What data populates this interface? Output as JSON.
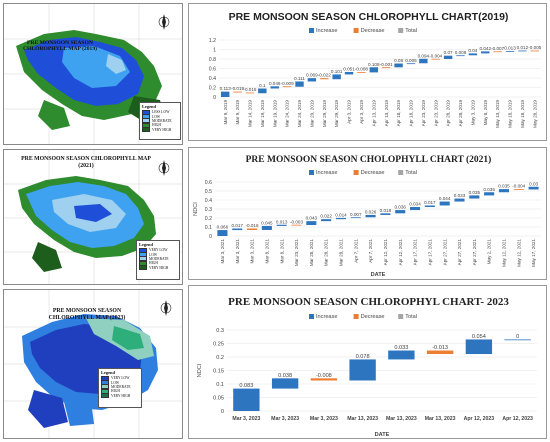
{
  "maps": [
    {
      "title": "PRE MONSOON SEASON CHLOROPHYLL MAP (2019)",
      "legend_title": "Legend",
      "legend_items": [
        {
          "label": "LESS LOW",
          "color": "#1f4fd8"
        },
        {
          "label": "LOW",
          "color": "#3fa2f0"
        },
        {
          "label": "MODERATE",
          "color": "#9fd0f0"
        },
        {
          "label": "HIGH",
          "color": "#2e8b2e"
        },
        {
          "label": "VERY HIGH",
          "color": "#1d5e1d"
        }
      ]
    },
    {
      "title": "PRE MONSOON SEASON CHLOROPHYLL MAP (2021)",
      "legend_title": "Legend",
      "legend_items": [
        {
          "label": "VERY LOW",
          "color": "#1f4fd8"
        },
        {
          "label": "LOW",
          "color": "#3fa2f0"
        },
        {
          "label": "MODERATE",
          "color": "#9fd0f0"
        },
        {
          "label": "HIGH",
          "color": "#2e8b2e"
        },
        {
          "label": "VERY HIGH",
          "color": "#1d5e1d"
        }
      ]
    },
    {
      "title": "PRE MONSOON SEASON CHLOROPHYLL MAP (2023)",
      "legend_title": "Legend",
      "legend_items": [
        {
          "label": "VERY LOW",
          "color": "#1f3fbf"
        },
        {
          "label": "LOW",
          "color": "#2f7fe0"
        },
        {
          "label": "MODERATE",
          "color": "#8fd0c0"
        },
        {
          "label": "HIGH",
          "color": "#2eae7a"
        },
        {
          "label": "VERY HIGH",
          "color": "#1d6e4d"
        }
      ]
    }
  ],
  "chart_data": [
    {
      "type": "waterfall",
      "title": "PRE MONSOON SEASON CHLOROPHYLL CHART(2019)",
      "legend": [
        "Increase",
        "Decrease",
        "Total"
      ],
      "colors": {
        "increase": "#2e75c0",
        "decrease": "#ed7d31",
        "total": "#a5a5a5"
      },
      "ylabel": "",
      "xlabel": "",
      "ylim": [
        0,
        1.2
      ],
      "yticks": [
        "0",
        "0.2",
        "0.4",
        "0.6",
        "0.8",
        "1",
        "1.2"
      ],
      "categories": [
        "Mar 9, 2019",
        "Mar 9, 2019",
        "Mar 14, 2019",
        "Mar 19, 2019",
        "Mar 19, 2019",
        "Mar 24, 2019",
        "Mar 24, 2019",
        "Mar 29, 2019",
        "Mar 29, 2019",
        "Mar 29, 2019",
        "Apr 3, 2019",
        "Apr 3, 2019",
        "Apr 13, 2019",
        "Apr 13, 2019",
        "Apr 18, 2019",
        "Apr 18, 2019",
        "Apr 23, 2019",
        "Apr 23, 2019",
        "Apr 28, 2019",
        "Apr 28, 2019",
        "May 3, 2019",
        "May 8, 2019",
        "May 13, 2019",
        "May 18, 2019",
        "May 18, 2019",
        "May 28, 2019"
      ],
      "values": [
        0.113,
        -0.019,
        -0.015,
        0.1,
        0.046,
        -0.009,
        0.111,
        0.069,
        -0.022,
        0.101,
        0.051,
        -0.008,
        0.108,
        -0.001,
        0.08,
        0.005,
        0.094,
        -0.004,
        0.07,
        0.008,
        0.04,
        0.042,
        -0.007,
        0.013,
        0.012,
        -0.005
      ],
      "labels": [
        "0.113",
        "-0.019",
        "-0.015",
        "0.1",
        "0.046",
        "-0.009",
        "0.111",
        "0.069",
        "-0.022",
        "0.101",
        "0.051",
        "-0.008",
        "0.108",
        "-0.001",
        "0.08",
        "0.005",
        "0.094",
        "-0.004",
        "0.07",
        "0.008",
        "0.04",
        "0.042",
        "-0.007",
        "0.013",
        "0.012",
        "-0.005"
      ]
    },
    {
      "type": "waterfall",
      "title": "PRE MONSOON SEASON CHOLOPHYLL CHART (2021)",
      "legend": [
        "Increase",
        "Decrease",
        "Total"
      ],
      "colors": {
        "increase": "#2e75c0",
        "decrease": "#ed7d31",
        "total": "#a5a5a5"
      },
      "ylabel": "NDCI",
      "xlabel": "DATE",
      "ylim": [
        0,
        0.6
      ],
      "yticks": [
        "0",
        "0.1",
        "0.2",
        "0.3",
        "0.4",
        "0.5",
        "0.6"
      ],
      "categories": [
        "Mar 3, 2021",
        "Mar 3, 2021",
        "Mar 3, 2021",
        "Mar 8, 2021",
        "Mar 8, 2021",
        "Mar 23, 2021",
        "Mar 28, 2021",
        "Mar 28, 2021",
        "Mar 28, 2021",
        "Apr 7, 2021",
        "Apr 7, 2021",
        "Apr 12, 2021",
        "Apr 12, 2021",
        "Apr 17, 2021",
        "Apr 17, 2021",
        "Apr 27, 2021",
        "Apr 27, 2021",
        "Apr 27, 2021",
        "May 2, 2021",
        "May 12, 2021",
        "May 12, 2021",
        "May 17, 2021"
      ],
      "values": [
        0.066,
        0.017,
        -0.016,
        0.045,
        0.013,
        -0.003,
        0.043,
        0.022,
        0.014,
        0.007,
        0.026,
        0.018,
        0.036,
        0.034,
        0.017,
        0.044,
        0.033,
        0.035,
        0.035,
        0.035,
        -0.004,
        0.03
      ],
      "labels": [
        "0.066",
        "0.017",
        "-0.016",
        "0.045",
        "0.013",
        "-0.003",
        "0.043",
        "0.022",
        "0.014",
        "0.007",
        "0.026",
        "0.018",
        "0.036",
        "0.034",
        "0.017",
        "0.044",
        "0.033",
        "0.035",
        "0.035",
        "0.035",
        "-0.004",
        "0.03"
      ]
    },
    {
      "type": "waterfall",
      "title": "PRE MONSOON SEASON CHLOROPHYL CHART- 2023",
      "legend": [
        "Increase",
        "Decrease",
        "Total"
      ],
      "colors": {
        "increase": "#2e75c0",
        "decrease": "#ed7d31",
        "total": "#a5a5a5"
      },
      "ylabel": "NDCI",
      "xlabel": "DATE",
      "ylim": [
        0,
        0.3
      ],
      "yticks": [
        "0",
        "0.05",
        "0.1",
        "0.15",
        "0.2",
        "0.25",
        "0.3"
      ],
      "categories": [
        "Mar 3, 2023",
        "Mar 3, 2023",
        "Mar 3, 2023",
        "Mar 13, 2023",
        "Mar 13, 2023",
        "Mar 13, 2023",
        "Apr 12, 2023",
        "Apr 12, 2023"
      ],
      "values": [
        0.083,
        0.038,
        -0.008,
        0.078,
        0.033,
        -0.013,
        0.054,
        0
      ],
      "labels": [
        "0.083",
        "0.038",
        "-0.008",
        "0.078",
        "0.033",
        "-0.013",
        "0.054",
        "0"
      ]
    }
  ]
}
